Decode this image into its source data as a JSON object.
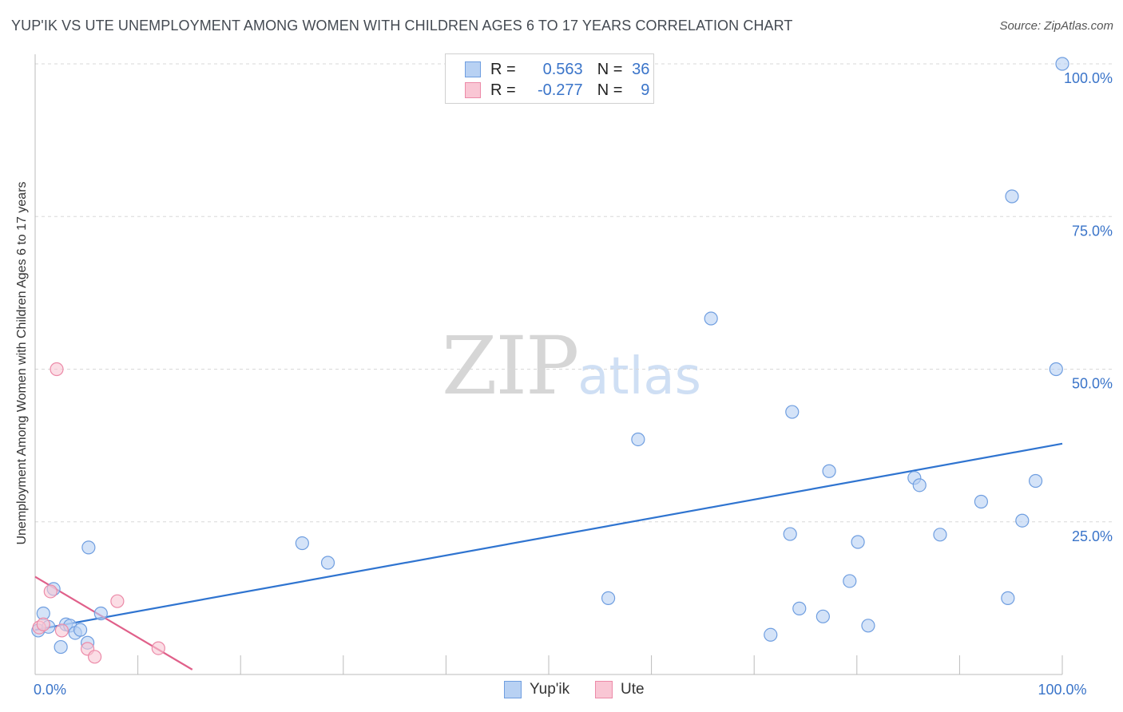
{
  "header": {
    "title": "YUP'IK VS UTE UNEMPLOYMENT AMONG WOMEN WITH CHILDREN AGES 6 TO 17 YEARS CORRELATION CHART",
    "source": "Source: ZipAtlas.com"
  },
  "watermark": {
    "zip": "ZIP",
    "atlas": "atlas"
  },
  "colors": {
    "yupik_fill": "#b8d1f3",
    "yupik_stroke": "#6f9ee0",
    "yupik_line": "#2f74d0",
    "ute_fill": "#f9c6d4",
    "ute_stroke": "#ec8aa8",
    "ute_line": "#e0608a",
    "value_text": "#3a74c9",
    "grid": "#d8d8d8"
  },
  "legend": {
    "rows": [
      {
        "r_label": "R =",
        "r_value": "0.563",
        "n_label": "N =",
        "n_value": "36"
      },
      {
        "r_label": "R =",
        "r_value": "-0.277",
        "n_label": "N =",
        "n_value": "9"
      }
    ]
  },
  "bottom_legend": {
    "series1": "Yup'ik",
    "series2": "Ute"
  },
  "chart_data": {
    "type": "scatter",
    "title": "YUP'IK VS UTE UNEMPLOYMENT AMONG WOMEN WITH CHILDREN AGES 6 TO 17 YEARS CORRELATION CHART",
    "xlabel": "",
    "ylabel": "Unemployment Among Women with Children Ages 6 to 17 years",
    "xlim": [
      0,
      100
    ],
    "ylim": [
      0,
      100
    ],
    "x_ticks": [
      0,
      10,
      20,
      30,
      40,
      50,
      60,
      70,
      80,
      90,
      100
    ],
    "x_tick_labels": [
      {
        "value": 0,
        "label": "0.0%"
      },
      {
        "value": 100,
        "label": "100.0%"
      }
    ],
    "y_tick_labels": [
      {
        "value": 25,
        "label": "25.0%"
      },
      {
        "value": 50,
        "label": "50.0%"
      },
      {
        "value": 75,
        "label": "75.0%"
      },
      {
        "value": 100,
        "label": "100.0%"
      }
    ],
    "grid": true,
    "legend_position": "top-center",
    "series": [
      {
        "name": "Yup'ik",
        "r": 0.563,
        "n": 36,
        "points": [
          [
            0.3,
            7.2
          ],
          [
            0.8,
            10.0
          ],
          [
            1.3,
            7.8
          ],
          [
            1.8,
            14.0
          ],
          [
            2.5,
            4.5
          ],
          [
            3.0,
            8.2
          ],
          [
            3.4,
            8.0
          ],
          [
            3.9,
            6.8
          ],
          [
            4.4,
            7.3
          ],
          [
            5.1,
            5.2
          ],
          [
            5.2,
            20.8
          ],
          [
            6.4,
            10.0
          ],
          [
            26.0,
            21.5
          ],
          [
            28.5,
            18.3
          ],
          [
            55.8,
            12.5
          ],
          [
            58.7,
            38.5
          ],
          [
            65.8,
            58.3
          ],
          [
            71.6,
            6.5
          ],
          [
            73.5,
            23.0
          ],
          [
            73.7,
            43.0
          ],
          [
            74.4,
            10.8
          ],
          [
            76.7,
            9.5
          ],
          [
            77.3,
            33.3
          ],
          [
            79.3,
            15.3
          ],
          [
            80.1,
            21.7
          ],
          [
            81.1,
            8.0
          ],
          [
            85.6,
            32.2
          ],
          [
            86.1,
            31.0
          ],
          [
            88.1,
            22.9
          ],
          [
            92.1,
            28.3
          ],
          [
            94.7,
            12.5
          ],
          [
            95.1,
            78.3
          ],
          [
            96.1,
            25.2
          ],
          [
            97.4,
            31.7
          ],
          [
            99.4,
            50.0
          ],
          [
            100.0,
            100.0
          ]
        ],
        "trend_line": {
          "x": [
            0,
            100
          ],
          "y": [
            7.3,
            37.8
          ]
        }
      },
      {
        "name": "Ute",
        "r": -0.277,
        "n": 9,
        "points": [
          [
            0.4,
            7.7
          ],
          [
            0.8,
            8.2
          ],
          [
            1.5,
            13.6
          ],
          [
            2.1,
            50.0
          ],
          [
            2.6,
            7.2
          ],
          [
            5.1,
            4.2
          ],
          [
            5.8,
            2.9
          ],
          [
            8.0,
            12.0
          ],
          [
            12.0,
            4.3
          ]
        ],
        "trend_line": {
          "x": [
            0,
            15.3
          ],
          "y": [
            16.0,
            0.8
          ]
        }
      }
    ]
  }
}
